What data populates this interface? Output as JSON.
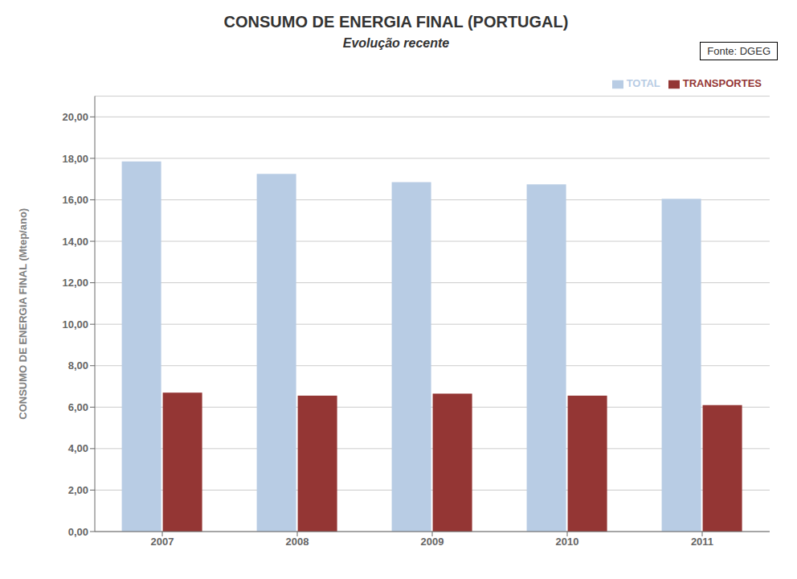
{
  "chart_data": {
    "type": "bar",
    "title": "CONSUMO DE ENERGIA FINAL (PORTUGAL)",
    "subtitle": "Evolução recente",
    "annotations": [
      "Fonte: DGEG"
    ],
    "ylabel": "CONSUMO DE ENERGIA FINAL (Mtep/ano)",
    "categories": [
      "2007",
      "2008",
      "2009",
      "2010",
      "2011"
    ],
    "series": [
      {
        "name": "TOTAL",
        "color": "#b8cce4",
        "values": [
          17.85,
          17.25,
          16.85,
          16.75,
          16.05
        ]
      },
      {
        "name": "TRANSPORTES",
        "color": "#943634",
        "values": [
          6.7,
          6.55,
          6.65,
          6.55,
          6.1
        ]
      }
    ],
    "ylim": [
      0,
      21.0
    ],
    "yticks": [
      {
        "value": 0.0,
        "label": "0,00"
      },
      {
        "value": 2.0,
        "label": "2,00"
      },
      {
        "value": 4.0,
        "label": "4,00"
      },
      {
        "value": 6.0,
        "label": "6,00"
      },
      {
        "value": 8.0,
        "label": "8,00"
      },
      {
        "value": 10.0,
        "label": "10,00"
      },
      {
        "value": 12.0,
        "label": "12,00"
      },
      {
        "value": 14.0,
        "label": "14,00"
      },
      {
        "value": 16.0,
        "label": "16,00"
      },
      {
        "value": 18.0,
        "label": "18,00"
      },
      {
        "value": 20.0,
        "label": "20,00"
      }
    ],
    "grid": true,
    "legend": "upper right"
  }
}
